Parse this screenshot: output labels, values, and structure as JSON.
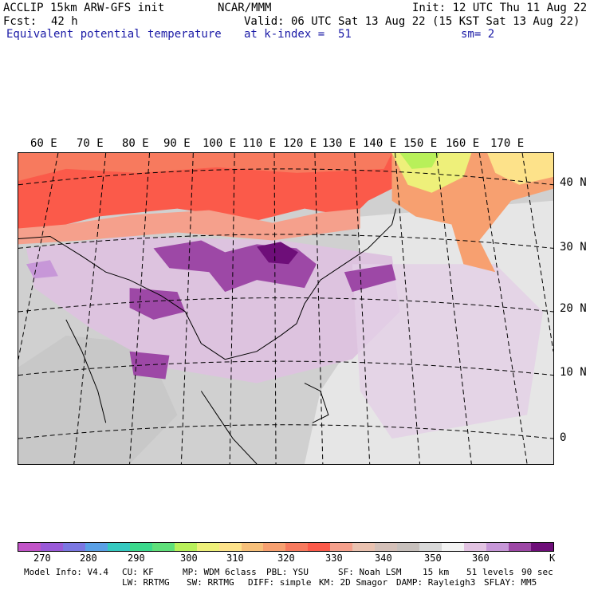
{
  "header": {
    "model_title": "ACCLIP 15km ARW-GFS init",
    "org": "NCAR/MMM",
    "init": "Init: 12 UTC Thu 11 Aug 22",
    "fcst_label": "Fcst:",
    "fcst_value": "42 h",
    "valid": "Valid: 06 UTC Sat 13 Aug 22 (15 KST Sat 13 Aug 22)",
    "field": "Equivalent potential temperature",
    "level": "at k-index =  51",
    "smooth": "sm= 2"
  },
  "map": {
    "lon_labels": [
      "60 E",
      "70 E",
      "80 E",
      "90 E",
      "100 E",
      "110 E",
      "120 E",
      "130 E",
      "140 E",
      "150 E",
      "160 E",
      "170 E"
    ],
    "lat_labels": [
      "40 N",
      "30 N",
      "20 N",
      "10 N",
      "0"
    ]
  },
  "colorbar": {
    "colors": [
      "#c254c8",
      "#9a5ad8",
      "#7b77e2",
      "#5aa0e6",
      "#35c9c0",
      "#3bd98c",
      "#5fe07a",
      "#b8f05a",
      "#eef07a",
      "#fde28a",
      "#f7c07a",
      "#f7a070",
      "#f77a5e",
      "#fb5a4a",
      "#f5a08c",
      "#eac2b0",
      "#d4c0b8",
      "#c7c0bc",
      "#d8d8d8",
      "#f2f2f2",
      "#e2c3e2",
      "#c797d8",
      "#9d48a6",
      "#6e0e79"
    ],
    "ticks": [
      "270",
      "280",
      "290",
      "300",
      "310",
      "320",
      "330",
      "340",
      "350",
      "360"
    ],
    "unit": "K"
  },
  "model_info": {
    "row1": [
      "Model Info: V4.4",
      "CU: KF",
      "MP: WDM 6class",
      "PBL: YSU",
      "SF: Noah LSM",
      "15 km",
      "51 levels",
      "90 sec"
    ],
    "row2": [
      "LW: RRTMG",
      "SW: RRTMG",
      "DIFF: simple",
      "KM: 2D Smagor",
      "DAMP: Rayleigh3",
      "SFLAY: MM5"
    ]
  }
}
